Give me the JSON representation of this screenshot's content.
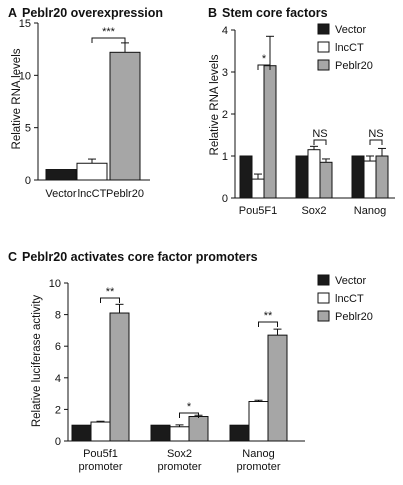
{
  "panels": [
    {
      "letter": "A",
      "title": "Peblr20 overexpression",
      "ylabel": "Relative RNA levels",
      "yticks": [
        0,
        5,
        10,
        15
      ],
      "ylim": [
        0,
        15
      ]
    },
    {
      "letter": "B",
      "title": "Stem core factors",
      "ylabel": "Relative RNA levels",
      "yticks": [
        0,
        1,
        2,
        3,
        4
      ],
      "ylim": [
        0,
        4
      ],
      "legend": [
        "Vector",
        "lncCT",
        "Peblr20"
      ]
    },
    {
      "letter": "C",
      "title": "Peblr20 activates core factor promoters",
      "ylabel": "Relative luciferase activity",
      "yticks": [
        0,
        2,
        4,
        6,
        8,
        10
      ],
      "ylim": [
        0,
        10
      ],
      "legend": [
        "Vector",
        "lncCT",
        "Peblr20"
      ]
    }
  ],
  "colors": {
    "vector": "#1a1a1a",
    "lncct": "#ffffff",
    "peblr20": "#a6a6a6"
  },
  "chart_data": [
    {
      "type": "bar",
      "title": "Peblr20 overexpression",
      "ylabel": "Relative RNA levels",
      "ylim": [
        0,
        15
      ],
      "categories": [
        "Vector",
        "lncCT",
        "Peblr20"
      ],
      "values": [
        1.0,
        1.6,
        12.2
      ],
      "errors": [
        0.0,
        0.4,
        0.9
      ],
      "significance": [
        {
          "from": 1,
          "to": 2,
          "label": "***"
        }
      ]
    },
    {
      "type": "bar",
      "title": "Stem core factors",
      "ylabel": "Relative RNA levels",
      "ylim": [
        0,
        4
      ],
      "categories": [
        "Pou5F1",
        "Sox2",
        "Nanog"
      ],
      "series": [
        {
          "name": "Vector",
          "values": [
            1.0,
            1.0,
            1.0
          ],
          "errors": [
            0.0,
            0.0,
            0.0
          ]
        },
        {
          "name": "lncCT",
          "values": [
            0.45,
            1.15,
            0.88
          ],
          "errors": [
            0.12,
            0.08,
            0.12
          ]
        },
        {
          "name": "Peblr20",
          "values": [
            3.15,
            0.85,
            1.0
          ],
          "errors": [
            0.7,
            0.08,
            0.18
          ]
        }
      ],
      "significance": [
        {
          "category": 0,
          "label": "*"
        },
        {
          "category": 1,
          "label": "NS"
        },
        {
          "category": 2,
          "label": "NS"
        }
      ]
    },
    {
      "type": "bar",
      "title": "Peblr20 activates core factor promoters",
      "ylabel": "Relative luciferase activity",
      "ylim": [
        0,
        10
      ],
      "categories": [
        "Pou5f1 promoter",
        "Sox2 promoter",
        "Nanog promoter"
      ],
      "series": [
        {
          "name": "Vector",
          "values": [
            1.0,
            1.0,
            1.0
          ],
          "errors": [
            0.0,
            0.0,
            0.0
          ]
        },
        {
          "name": "lncCT",
          "values": [
            1.2,
            0.9,
            2.5
          ],
          "errors": [
            0.05,
            0.12,
            0.08
          ]
        },
        {
          "name": "Peblr20",
          "values": [
            8.1,
            1.55,
            6.7
          ],
          "errors": [
            0.55,
            0.08,
            0.38
          ]
        }
      ],
      "significance": [
        {
          "category": 0,
          "label": "**"
        },
        {
          "category": 1,
          "label": "*"
        },
        {
          "category": 2,
          "label": "**"
        }
      ]
    }
  ]
}
